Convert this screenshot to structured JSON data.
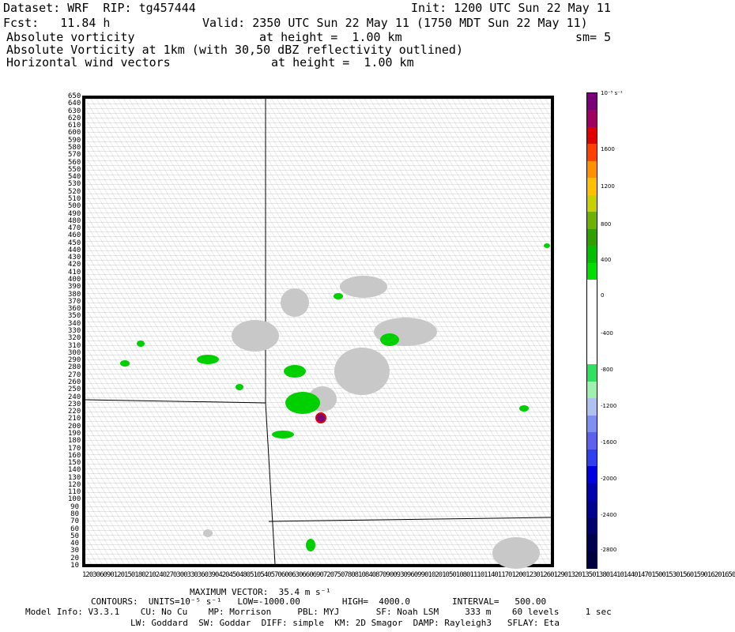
{
  "header": {
    "dataset": "Dataset: WRF  RIP: tg457444",
    "init": "Init: 1200 UTC Sun 22 May 11",
    "fcst": "Fcst:   11.84 h",
    "valid": "Valid: 2350 UTC Sun 22 May 11 (1750 MDT Sun 22 May 11)",
    "field1": "Absolute vorticity",
    "field1_height": "at height =  1.00 km",
    "smoothing": "sm= 5",
    "field2": "Absolute Vorticity at 1km (with 30,50 dBZ reflectivity outlined)",
    "field3": "Horizontal wind vectors",
    "field3_height": "at height =  1.00 km"
  },
  "y_axis_labels": [
    "650",
    "640",
    "630",
    "620",
    "610",
    "600",
    "590",
    "580",
    "570",
    "560",
    "550",
    "540",
    "530",
    "520",
    "510",
    "500",
    "490",
    "480",
    "470",
    "460",
    "450",
    "440",
    "430",
    "420",
    "410",
    "400",
    "390",
    "380",
    "370",
    "360",
    "350",
    "340",
    "330",
    "320",
    "310",
    "300",
    "290",
    "280",
    "270",
    "260",
    "250",
    "240",
    "230",
    "220",
    "210",
    "200",
    "190",
    "180",
    "170",
    "160",
    "150",
    "140",
    "130",
    "120",
    "110",
    "100",
    "90",
    "80",
    "70",
    "60",
    "50",
    "40",
    "30",
    "20",
    "10"
  ],
  "x_axis_text": "1203060901201501802102402703003303603904204504805105405706006306606907207507808108408709009309609901020105010801110114011701200123012601290132013501380141014401470150015301560159016201650",
  "colorbar": {
    "unit": "10⁻⁵ s⁻¹",
    "labels": [
      "1600",
      "1200",
      "800",
      "400",
      "0",
      "-400",
      "-800",
      "-1200",
      "-1600",
      "-2000",
      "-2400",
      "-2800"
    ],
    "colors": [
      "#7a007a",
      "#a00060",
      "#e00000",
      "#ff4000",
      "#ff9000",
      "#ffc000",
      "#c8d000",
      "#70b000",
      "#30a000",
      "#00c000",
      "#00e000",
      "#ffffff",
      "#ffffff",
      "#ffffff",
      "#ffffff",
      "#ffffff",
      "#30e060",
      "#a0f0b0",
      "#b0c0f0",
      "#8090f0",
      "#6060f0",
      "#3040f0",
      "#0000e0",
      "#0000b0",
      "#000090",
      "#000070",
      "#000050",
      "#000040"
    ]
  },
  "footer": {
    "max_vector": "MAXIMUM VECTOR:  35.4 m s⁻¹",
    "contours": "CONTOURS:  UNITS=10⁻⁵ s⁻¹   LOW=-1000.00        HIGH=  4000.0        INTERVAL=   500.00",
    "model_info": "Model Info: V3.3.1    CU: No Cu    MP: Morrison     PBL: MYJ       SF: Noah LSM     333 m    60 levels     1 sec",
    "model_info2": "LW: Goddard  SW: Goddar  DIFF: simple  KM: 2D Smagor  DAMP: Rayleigh3   SFLAY: Eta"
  }
}
